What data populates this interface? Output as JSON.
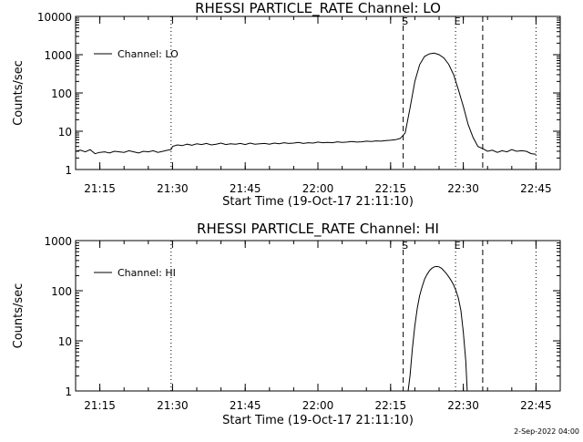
{
  "footer_stamp": "2-Sep-2022 04:00",
  "chart_data": [
    {
      "type": "line",
      "title": "RHESSI PARTICLE_RATE Channel: LO",
      "xlabel": "Start Time (19-Oct-17 21:11:10)",
      "ylabel": "Counts/sec",
      "y_scale": "log",
      "ylim": [
        1,
        10000
      ],
      "y_ticks": [
        1,
        10,
        100,
        1000,
        10000
      ],
      "y_tick_labels": [
        "1",
        "10",
        "100",
        "1000",
        "10000"
      ],
      "xlim_minutes": [
        21.1667,
        22.8333
      ],
      "x_ticks_minutes": [
        21.25,
        21.5,
        21.75,
        22.0,
        22.25,
        22.5,
        22.75
      ],
      "x_tick_labels": [
        "21:15",
        "21:30",
        "21:45",
        "22:00",
        "22:15",
        "22:30",
        "22:45"
      ],
      "legend": {
        "entries": [
          "Channel: LO"
        ],
        "placement": "top-left"
      },
      "markers": [
        {
          "label": "S",
          "x_hour": 22.2933,
          "style": "dashed"
        },
        {
          "label": "E",
          "x_hour": 22.4733,
          "style": "dotted"
        },
        {
          "label": "",
          "x_hour": 22.5667,
          "style": "dashed"
        },
        {
          "label": "",
          "x_hour": 21.495,
          "style": "dotted"
        },
        {
          "label": "",
          "x_hour": 22.75,
          "style": "dotted"
        }
      ],
      "series": [
        {
          "name": "Channel: LO",
          "x_hour": [
            21.1667,
            21.1833,
            21.2,
            21.2167,
            21.2333,
            21.25,
            21.2667,
            21.2833,
            21.3,
            21.3167,
            21.3333,
            21.35,
            21.3667,
            21.3833,
            21.4,
            21.4167,
            21.4333,
            21.45,
            21.4667,
            21.4833,
            21.495,
            21.5,
            21.5167,
            21.5333,
            21.55,
            21.5667,
            21.5833,
            21.6,
            21.6167,
            21.6333,
            21.65,
            21.6667,
            21.6833,
            21.7,
            21.7167,
            21.7333,
            21.75,
            21.7667,
            21.7833,
            21.8,
            21.8167,
            21.8333,
            21.85,
            21.8667,
            21.8833,
            21.9,
            21.9167,
            21.9333,
            21.95,
            21.9667,
            21.9833,
            22.0,
            22.0167,
            22.0333,
            22.05,
            22.0667,
            22.0833,
            22.1,
            22.1167,
            22.1333,
            22.15,
            22.1667,
            22.1833,
            22.2,
            22.2167,
            22.2333,
            22.25,
            22.2667,
            22.2833,
            22.3,
            22.3167,
            22.3333,
            22.35,
            22.3667,
            22.3833,
            22.4,
            22.4167,
            22.4333,
            22.45,
            22.4667,
            22.4833,
            22.5,
            22.5167,
            22.5333,
            22.55,
            22.5667,
            22.5833,
            22.6,
            22.6167,
            22.6333,
            22.65,
            22.6667,
            22.6833,
            22.7,
            22.7167,
            22.7333,
            22.75
          ],
          "values": [
            3.0,
            3.2,
            2.9,
            3.3,
            2.6,
            2.8,
            2.9,
            2.7,
            3.0,
            2.9,
            2.8,
            3.1,
            2.9,
            2.7,
            3.0,
            2.9,
            3.1,
            2.8,
            3.0,
            3.2,
            3.3,
            4.0,
            4.4,
            4.2,
            4.6,
            4.3,
            4.7,
            4.5,
            4.8,
            4.4,
            4.6,
            4.9,
            4.5,
            4.7,
            4.6,
            4.8,
            4.5,
            4.9,
            4.6,
            4.7,
            4.8,
            4.6,
            4.9,
            4.7,
            5.0,
            4.8,
            4.9,
            5.1,
            4.8,
            5.0,
            4.9,
            5.2,
            5.0,
            5.1,
            5.0,
            5.3,
            5.1,
            5.2,
            5.4,
            5.2,
            5.3,
            5.5,
            5.4,
            5.6,
            5.5,
            5.7,
            5.8,
            6.0,
            6.5,
            9,
            40,
            200,
            550,
            900,
            1050,
            1100,
            1000,
            820,
            560,
            300,
            120,
            45,
            15,
            7,
            4,
            3.5,
            3.0,
            3.2,
            2.8,
            3.1,
            2.9,
            3.3,
            3.0,
            3.1,
            3.0,
            2.6,
            2.5
          ]
        }
      ]
    },
    {
      "type": "line",
      "title": "RHESSI PARTICLE_RATE Channel: HI",
      "xlabel": "Start Time (19-Oct-17 21:11:10)",
      "ylabel": "Counts/sec",
      "y_scale": "log",
      "ylim": [
        1,
        1000
      ],
      "y_ticks": [
        1,
        10,
        100,
        1000
      ],
      "y_tick_labels": [
        "1",
        "10",
        "100",
        "1000"
      ],
      "xlim_minutes": [
        21.1667,
        22.8333
      ],
      "x_ticks_minutes": [
        21.25,
        21.5,
        21.75,
        22.0,
        22.25,
        22.5,
        22.75
      ],
      "x_tick_labels": [
        "21:15",
        "21:30",
        "21:45",
        "22:00",
        "22:15",
        "22:30",
        "22:45"
      ],
      "legend": {
        "entries": [
          "Channel: HI"
        ],
        "placement": "top-left"
      },
      "markers": [
        {
          "label": "S",
          "x_hour": 22.2933,
          "style": "dashed"
        },
        {
          "label": "E",
          "x_hour": 22.4733,
          "style": "dotted"
        },
        {
          "label": "",
          "x_hour": 22.5667,
          "style": "dashed"
        },
        {
          "label": "",
          "x_hour": 21.495,
          "style": "dotted"
        },
        {
          "label": "",
          "x_hour": 22.75,
          "style": "dotted"
        }
      ],
      "series": [
        {
          "name": "Channel: HI",
          "x_hour": [
            22.31,
            22.3167,
            22.325,
            22.3333,
            22.3417,
            22.35,
            22.3583,
            22.3667,
            22.375,
            22.3833,
            22.3917,
            22.4,
            22.4083,
            22.4167,
            22.425,
            22.4333,
            22.4417,
            22.45,
            22.4583,
            22.4667,
            22.475,
            22.4833,
            22.4917,
            22.5,
            22.5083,
            22.5133
          ],
          "values": [
            1,
            2,
            7,
            20,
            45,
            80,
            120,
            170,
            210,
            250,
            280,
            300,
            305,
            300,
            280,
            250,
            220,
            190,
            160,
            130,
            100,
            70,
            40,
            15,
            4,
            1
          ]
        }
      ]
    }
  ]
}
